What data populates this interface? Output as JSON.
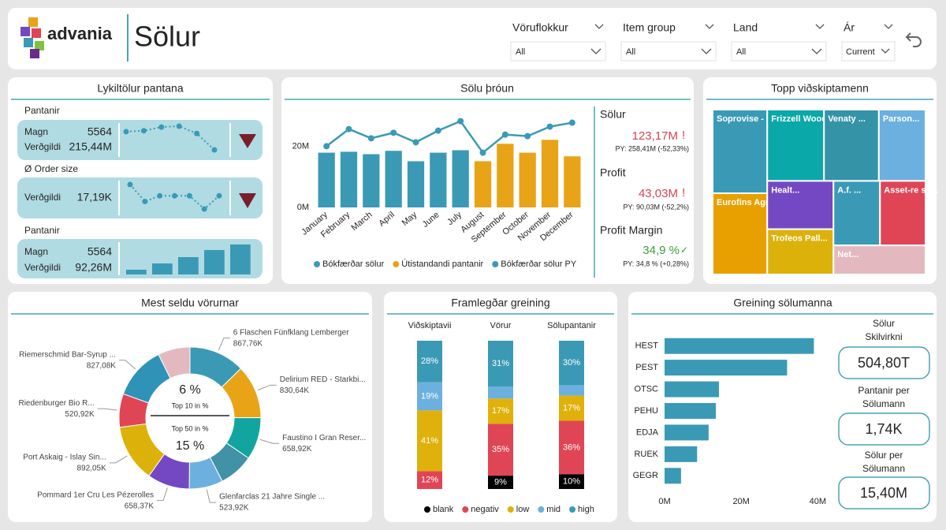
{
  "header": {
    "logo": "advania",
    "title": "Sölur"
  },
  "filters": [
    {
      "label": "Vöruflokkur",
      "value": "All"
    },
    {
      "label": "Item group",
      "value": "All"
    },
    {
      "label": "Land",
      "value": "All"
    },
    {
      "label": "Ár",
      "value": "Current"
    }
  ],
  "kpi_panel": {
    "title": "Lykiltölur pantana",
    "sections": [
      {
        "heading": "Pantanir",
        "rows": [
          {
            "label": "Magn",
            "value": "5564"
          },
          {
            "label": "Verðgildi",
            "value": "215,44M"
          }
        ]
      },
      {
        "heading": "Ø Order size",
        "rows": [
          {
            "label": "Verðgildi",
            "value": "17,19K"
          }
        ]
      },
      {
        "heading": "Pantanir",
        "rows": [
          {
            "label": "Magn",
            "value": "5564"
          },
          {
            "label": "Verðgildi",
            "value": "92,26M"
          }
        ]
      }
    ]
  },
  "sales_kpis": [
    {
      "label": "Sölur",
      "value": "123,17M",
      "flag": "!",
      "py": "PY: 258,41M (-52,33%)"
    },
    {
      "label": "Profit",
      "value": "43,03M",
      "flag": "!",
      "py": "PY: 90,03M (-52,2%)"
    },
    {
      "label": "Profit Margin",
      "value": "34,9 %",
      "flag": "✓",
      "py": "PY: 34,8 % (+0,28%)"
    }
  ],
  "team_kpis": [
    {
      "label": [
        "Sölur",
        "Skilvirkni"
      ],
      "value": "504,80T"
    },
    {
      "label": [
        "Pantanir per",
        "Sölumann"
      ],
      "value": "1,74K"
    },
    {
      "label": [
        "Sölur per",
        "Sölumann"
      ],
      "value": "15,40M"
    }
  ],
  "chart_data": [
    {
      "type": "sparkline",
      "color": "#3a9ab5",
      "values": [
        200,
        202,
        210,
        212,
        196,
        160
      ]
    },
    {
      "type": "sparkline",
      "color": "#3a9ab5",
      "values": [
        19,
        14.5,
        16,
        16,
        16,
        12.5,
        16
      ]
    },
    {
      "type": "minibar",
      "color": "#3a9ab5",
      "values": [
        6,
        14,
        22,
        31,
        38
      ]
    },
    {
      "type": "combo",
      "title": "Sölu þróun",
      "categories": [
        "January",
        "February",
        "March",
        "April",
        "May",
        "June",
        "July",
        "August",
        "September",
        "October",
        "November",
        "December"
      ],
      "series": [
        {
          "name": "Bókfærðar sölur",
          "kind": "bar",
          "color": "#3a9ab5",
          "values": [
            17.9,
            18.2,
            17.4,
            18.5,
            15.1,
            17.9,
            18.7,
            null,
            null,
            null,
            null,
            null
          ]
        },
        {
          "name": "Útistandandi pantanir",
          "kind": "bar",
          "color": "#e8a317",
          "values": [
            null,
            null,
            null,
            null,
            null,
            null,
            null,
            15.1,
            20.8,
            17.9,
            22.1,
            16.7
          ]
        },
        {
          "name": "Bókfærðar sölur PY",
          "kind": "line",
          "color": "#3a9ab5",
          "values": [
            20,
            25.6,
            22.6,
            24.4,
            21.3,
            25.1,
            28.2,
            17.9,
            23.8,
            23.3,
            26.4,
            27.7
          ]
        }
      ],
      "ylim": [
        0,
        33
      ],
      "yticks": [
        {
          "value": 0,
          "label": "0M"
        },
        {
          "value": 20,
          "label": "20M"
        }
      ]
    },
    {
      "type": "treemap",
      "title": "Topp viðskiptamenn",
      "categories": [
        "Soprovise - So...",
        "Eurofins Agros...",
        "Frizzell Wood ...",
        "Venaty ...",
        "Parson...",
        "Healt...",
        "Trofeos Pall...",
        "A.f. ...",
        "Asset-re s.r.l.",
        "Net..."
      ],
      "values": [
        70,
        68,
        62,
        60,
        51,
        49,
        46,
        46,
        45,
        41
      ],
      "colors": [
        "#3a9ab5",
        "#e8a000",
        "#0aa8a8",
        "#3593a8",
        "#6cb0e0",
        "#7448c2",
        "#dcb10a",
        "#3a9ab5",
        "#e04556",
        "#e3b9bf"
      ]
    },
    {
      "type": "donut",
      "title": "Mest seldu vörurnar",
      "categories": [
        "6 Flaschen Fünfklang Lemberger",
        "Delirium RED - Starkbi...",
        "Faustino I Gran Reser...",
        null,
        "Glenfarclas 21 Jahre Single ...",
        "Pommard 1er Cru Les Pézerolles",
        "Port Askaig - Islay Sin...",
        "Riedenburger Bio R...",
        "Riemerschmid Bar-Syrup ...",
        null
      ],
      "values": [
        867.76,
        830.64,
        658.92,
        540,
        523.92,
        658.37,
        892.05,
        520.92,
        827.08,
        500
      ],
      "value_labels": [
        "867,76K",
        "830,64K",
        "658,92K",
        null,
        "523,92K",
        "658,37K",
        "892,05K",
        "520,92K",
        "827,08K",
        null
      ],
      "colors": [
        "#3a9ab5",
        "#e8a317",
        "#12a5a0",
        "#4192a6",
        "#6cb0e0",
        "#7448c2",
        "#dcb10a",
        "#e04556",
        "#2f93b8",
        "#e3b9bf"
      ],
      "center": {
        "top_value": "6 %",
        "top_label": "Top 10 in %",
        "bottom_label": "Top 50 in %",
        "bottom_value": "15 %"
      }
    },
    {
      "type": "stacked100",
      "title": "Framlegðar greining",
      "categories": [
        "Viðskiptavii",
        "Vörur",
        "Sölupantanir"
      ],
      "series": [
        {
          "name": "blank",
          "color": "#000000",
          "values": [
            0,
            9,
            10
          ],
          "value_labels": [
            null,
            "9%",
            "10%"
          ]
        },
        {
          "name": "negativ",
          "color": "#e04556",
          "values": [
            12,
            35,
            36
          ],
          "value_labels": [
            "12%",
            "35%",
            "36%"
          ]
        },
        {
          "name": "low",
          "color": "#dfb10a",
          "values": [
            41,
            17,
            17
          ],
          "value_labels": [
            "41%",
            "17%",
            "17%"
          ]
        },
        {
          "name": "mid",
          "color": "#6cb0e0",
          "values": [
            19,
            8,
            7
          ],
          "value_labels": [
            "19%",
            null,
            null
          ]
        },
        {
          "name": "high",
          "color": "#3a9ab5",
          "values": [
            28,
            31,
            30
          ],
          "value_labels": [
            "28%",
            "31%",
            "30%"
          ]
        }
      ]
    },
    {
      "type": "hbar",
      "title": "Greining sölumanna",
      "color": "#3a9ab5",
      "categories": [
        "HEST",
        "PEST",
        "OTSC",
        "PEHU",
        "EDJA",
        "RUEK",
        "GEGR"
      ],
      "values": [
        39,
        32,
        14.2,
        13.4,
        11.5,
        8.5,
        4.3
      ],
      "xlim": [
        0,
        42
      ],
      "xticks": [
        {
          "value": 0,
          "label": "0M"
        },
        {
          "value": 20,
          "label": "20M"
        },
        {
          "value": 40,
          "label": "40M"
        }
      ]
    }
  ]
}
